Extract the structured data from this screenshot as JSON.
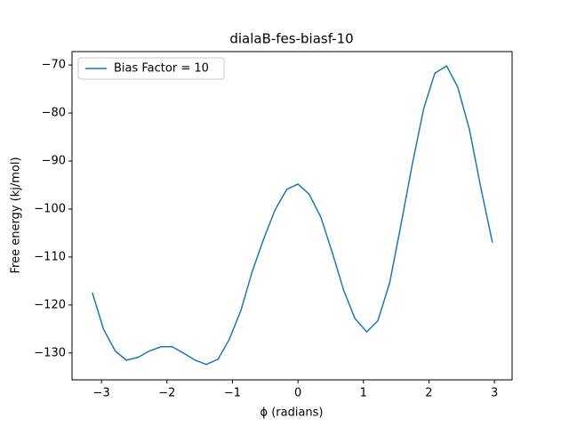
{
  "chart_data": {
    "type": "line",
    "title": "dialaB-fes-biasf-10",
    "xlabel": "ϕ (radians)",
    "ylabel": "Free energy (kj/mol)",
    "x": [
      -3.14,
      -2.97,
      -2.79,
      -2.62,
      -2.44,
      -2.27,
      -2.09,
      -1.92,
      -1.75,
      -1.57,
      -1.4,
      -1.22,
      -1.05,
      -0.87,
      -0.7,
      -0.52,
      -0.35,
      -0.17,
      0,
      0.17,
      0.35,
      0.52,
      0.7,
      0.87,
      1.05,
      1.22,
      1.4,
      1.57,
      1.75,
      1.92,
      2.09,
      2.27,
      2.44,
      2.62,
      2.79,
      2.97
    ],
    "series": [
      {
        "name": "Bias Factor = 10",
        "color": "#1f77b4",
        "values": [
          -117.4,
          -125.0,
          -129.6,
          -131.5,
          -130.9,
          -129.6,
          -128.7,
          -128.7,
          -130.0,
          -131.5,
          -132.4,
          -131.3,
          -127.2,
          -121.1,
          -113.1,
          -106.1,
          -100.2,
          -95.9,
          -94.8,
          -96.9,
          -101.7,
          -108.9,
          -117.0,
          -122.8,
          -125.6,
          -123.3,
          -115.4,
          -103.5,
          -90.4,
          -79.1,
          -71.7,
          -70.2,
          -74.6,
          -83.5,
          -95.4,
          -107.0
        ]
      }
    ],
    "xlim": [
      -3.45,
      3.27
    ],
    "ylim": [
      -135.6,
      -67.2
    ],
    "xticks": [
      {
        "value": -3,
        "label": "−3"
      },
      {
        "value": -2,
        "label": "−2"
      },
      {
        "value": -1,
        "label": "−1"
      },
      0,
      1,
      2,
      3
    ],
    "yticks": [
      {
        "value": -130,
        "label": "−130"
      },
      {
        "value": -120,
        "label": "−120"
      },
      {
        "value": -110,
        "label": "−110"
      },
      {
        "value": -100,
        "label": "−100"
      },
      {
        "value": -90,
        "label": "−90"
      },
      {
        "value": -80,
        "label": "−80"
      },
      {
        "value": -70,
        "label": "−70"
      }
    ],
    "legend": "upper left",
    "grid": false
  }
}
